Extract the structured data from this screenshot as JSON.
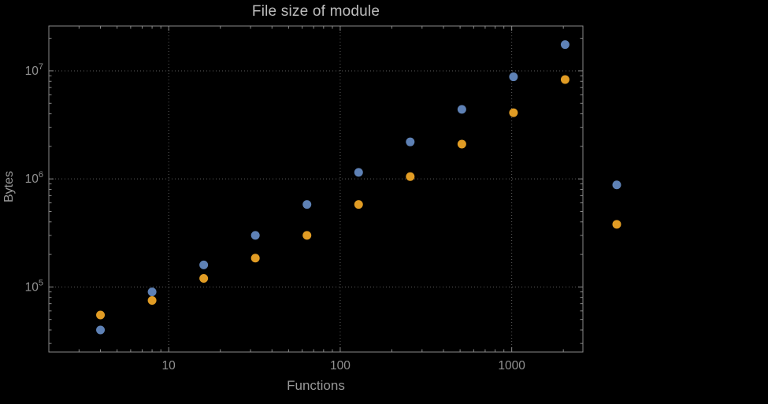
{
  "chart_data": {
    "type": "scatter",
    "title": "File size of module",
    "xlabel": "Functions",
    "ylabel": "Bytes",
    "x_scale": "log",
    "y_scale": "log",
    "xlim": [
      2,
      2600
    ],
    "ylim": [
      25000,
      26000000
    ],
    "grid": "dotted-major-decades",
    "legend_position": "none",
    "x": [
      4,
      8,
      16,
      32,
      64,
      128,
      256,
      512,
      1024,
      2048,
      4096
    ],
    "series": [
      {
        "name": "series-1-blue",
        "color": "#5E81B5",
        "values": [
          40000,
          90000,
          160000,
          300000,
          580000,
          1150000,
          2200000,
          4400000,
          8800000,
          17500000,
          880000
        ]
      },
      {
        "name": "series-2-orange",
        "color": "#E19C24",
        "values": [
          55000,
          75000,
          120000,
          185000,
          300000,
          580000,
          1050000,
          2100000,
          4100000,
          8300000,
          380000
        ]
      }
    ],
    "x_major_ticks": [
      10,
      100,
      1000
    ],
    "x_tick_labels": [
      "10",
      "100",
      "1000"
    ],
    "y_major_tick_exponents": [
      5,
      6,
      7
    ],
    "y_tick_base": "10",
    "marker_radius": 5.5
  },
  "colors": {
    "background": "#000000",
    "frame": "#8a8a8a",
    "grid": "#5e5e5e",
    "tick_label": "#919191",
    "title": "#bdbdbd",
    "axis_label": "#9a9a9a"
  }
}
